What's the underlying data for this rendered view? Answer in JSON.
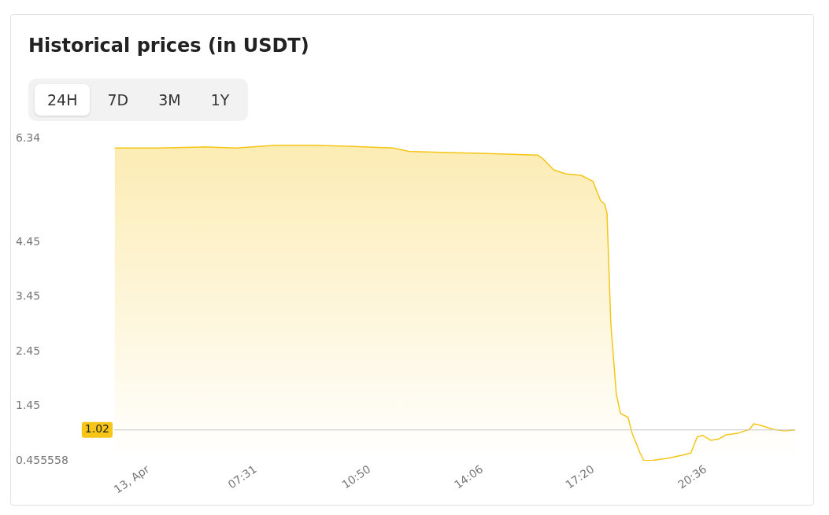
{
  "chart_data": {
    "type": "area",
    "title": "Historical prices (in USDT)",
    "annotations": [
      "24H",
      "7D",
      "3M",
      "1Y"
    ],
    "x": [
      3.414,
      4.67,
      5.98,
      6.95,
      8.09,
      9.23,
      10.37,
      11.51,
      11.96,
      12.87,
      14.24,
      15.72,
      15.84,
      16.18,
      16.52,
      16.98,
      17.32,
      17.55,
      17.66,
      17.73,
      17.84,
      18.0,
      18.12,
      18.34,
      18.46,
      18.69,
      18.8,
      19.03,
      19.26,
      19.48,
      19.94,
      20.17,
      20.35,
      20.51,
      20.74,
      20.97,
      21.19,
      21.54,
      21.88,
      21.99,
      22.22,
      22.56,
      22.9,
      23.2
    ],
    "series": [
      {
        "color": "#f5c518",
        "values": [
          6.17,
          6.17,
          6.19,
          6.17,
          6.22,
          6.22,
          6.2,
          6.17,
          6.11,
          6.09,
          6.07,
          6.04,
          5.99,
          5.77,
          5.7,
          5.67,
          5.56,
          5.2,
          5.15,
          4.98,
          2.97,
          1.68,
          1.32,
          1.25,
          0.96,
          0.6,
          0.46,
          0.46,
          0.48,
          0.5,
          0.56,
          0.6,
          0.89,
          0.92,
          0.83,
          0.85,
          0.93,
          0.96,
          1.03,
          1.13,
          1.1,
          1.03,
          1.0,
          1.02
        ]
      }
    ],
    "xlim": [
      3.4,
      23.2
    ],
    "xticks": [
      {
        "value": 4.4,
        "label": "13, Apr"
      },
      {
        "value": 7.517,
        "label": "07:31"
      },
      {
        "value": 10.833,
        "label": "10:50"
      },
      {
        "value": 14.1,
        "label": "14:06"
      },
      {
        "value": 17.333,
        "label": "17:20"
      },
      {
        "value": 20.6,
        "label": "20:36"
      }
    ],
    "ylim": [
      0.455558,
      6.34
    ],
    "yticks": [
      0.455558,
      1.45,
      2.45,
      3.45,
      4.45,
      6.34
    ],
    "ref_lines": [
      {
        "axis": "y",
        "value": 1.02,
        "label": "1.02",
        "color": "#c8c8c8"
      }
    ],
    "legend": false,
    "grid": false
  }
}
